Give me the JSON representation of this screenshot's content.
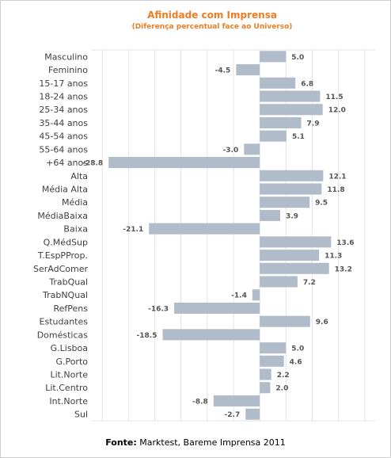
{
  "chart_data": {
    "type": "bar",
    "orientation": "horizontal",
    "title": "Afinidade com Imprensa",
    "subtitle": "(Diferença percentual face ao Universo)",
    "categories": [
      "Masculino",
      "Feminino",
      "15-17 anos",
      "18-24 anos",
      "25-34 anos",
      "35-44 anos",
      "45-54 anos",
      "55-64 anos",
      "+64 anos",
      "Alta",
      "Média Alta",
      "Média",
      "MédiaBaixa",
      "Baixa",
      "Q.MédSup",
      "T.EspPProp.",
      "SerAdComer",
      "TrabQual",
      "TrabNQual",
      "RefPens",
      "Estudantes",
      "Domésticas",
      "G.Lisboa",
      "G.Porto",
      "Lit.Norte",
      "Lit.Centro",
      "Int.Norte",
      "Sul"
    ],
    "values": [
      5.0,
      -4.5,
      6.8,
      11.5,
      12.0,
      7.9,
      5.1,
      -3.0,
      -28.8,
      12.1,
      11.8,
      9.5,
      3.9,
      -21.1,
      13.6,
      11.3,
      13.2,
      7.2,
      -1.4,
      -16.3,
      9.6,
      -18.5,
      5.0,
      4.6,
      2.2,
      2.0,
      -8.8,
      -2.7
    ],
    "value_labels": [
      "5.0",
      "-4.5",
      "6.8",
      "11.5",
      "12.0",
      "7.9",
      "5.1",
      "-3.0",
      "-28.8",
      "12.1",
      "11.8",
      "9.5",
      "3.9",
      "-21.1",
      "13.6",
      "11.3",
      "13.2",
      "7.2",
      "-1.4",
      "-16.3",
      "9.6",
      "-18.5",
      "5.0",
      "4.6",
      "2.2",
      "2.0",
      "-8.8",
      "-2.7"
    ],
    "xlim": [
      -32,
      22
    ],
    "grid": "vertical",
    "bar_color": "#b1bccb",
    "title_color": "#f07c22"
  },
  "footer": {
    "source_label": "Fonte:",
    "source_text": " Marktest, Bareme Imprensa 2011"
  }
}
